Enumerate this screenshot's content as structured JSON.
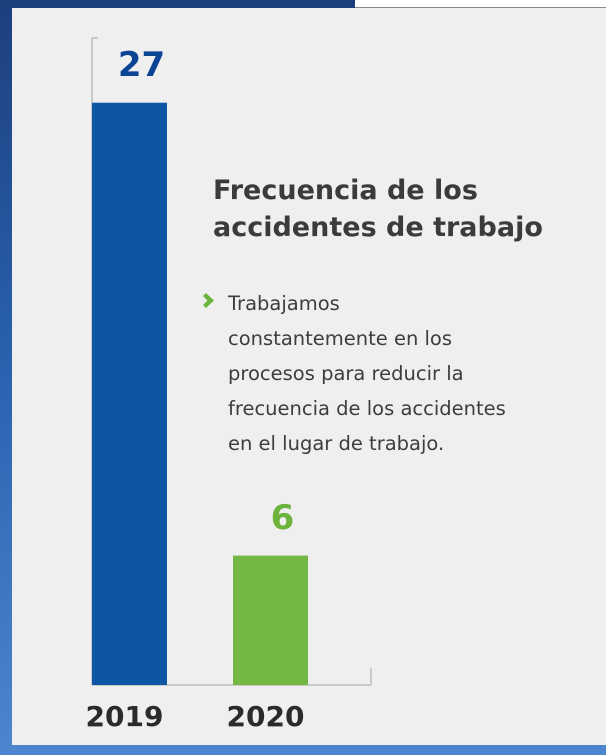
{
  "chart_data": {
    "type": "bar",
    "title": "Frecuencia de los accidentes de trabajo",
    "annotations": [
      "Trabajamos",
      "constantemente en los",
      "procesos para reducir la",
      "frecuencia de los accidentes",
      "en el lugar de trabajo."
    ],
    "categories": [
      "2019",
      "2020"
    ],
    "values": [
      27,
      6
    ],
    "colors": [
      "#0d56a6",
      "#73b744"
    ],
    "label_colors": [
      "#0c4494",
      "#6bb33b"
    ],
    "ylim": [
      0,
      30
    ]
  }
}
